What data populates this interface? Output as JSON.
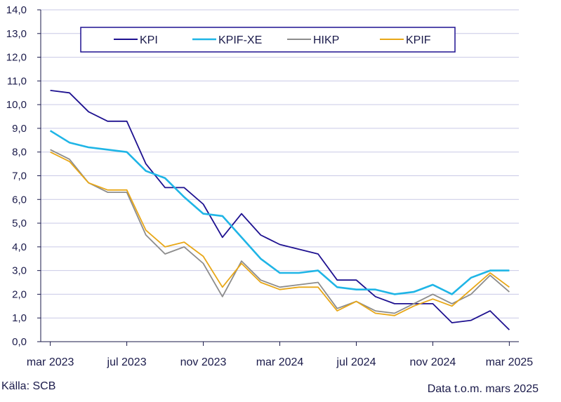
{
  "chart_data": {
    "type": "line",
    "x": [
      "mar 2023",
      "apr 2023",
      "maj 2023",
      "jun 2023",
      "jul 2023",
      "aug 2023",
      "sep 2023",
      "okt 2023",
      "nov 2023",
      "dec 2023",
      "jan 2024",
      "feb 2024",
      "mar 2024",
      "apr 2024",
      "maj 2024",
      "jun 2024",
      "jul 2024",
      "aug 2024",
      "sep 2024",
      "okt 2024",
      "nov 2024",
      "dec 2024",
      "jan 2025",
      "feb 2025",
      "mar 2025"
    ],
    "x_tick_labels": [
      "mar 2023",
      "jul 2023",
      "nov 2023",
      "mar 2024",
      "jul 2024",
      "nov 2024",
      "mar 2025"
    ],
    "x_tick_indices": [
      0,
      4,
      8,
      12,
      16,
      20,
      24
    ],
    "y_ticks": [
      "0,0",
      "1,0",
      "2,0",
      "3,0",
      "4,0",
      "5,0",
      "6,0",
      "7,0",
      "8,0",
      "9,0",
      "10,0",
      "11,0",
      "12,0",
      "13,0",
      "14,0"
    ],
    "ylim": [
      0,
      14
    ],
    "grid": true,
    "legend_position": "top",
    "series": [
      {
        "name": "KPI",
        "color": "#1e1190",
        "values": [
          10.6,
          10.5,
          9.7,
          9.3,
          9.3,
          7.5,
          6.5,
          6.5,
          5.8,
          4.4,
          5.4,
          4.5,
          4.1,
          3.9,
          3.7,
          2.6,
          2.6,
          1.9,
          1.6,
          1.6,
          1.6,
          0.8,
          0.9,
          1.3,
          0.5
        ]
      },
      {
        "name": "KPIF-XE",
        "color": "#1fb5e6",
        "values": [
          8.9,
          8.4,
          8.2,
          8.1,
          8.0,
          7.2,
          6.9,
          6.1,
          5.4,
          5.3,
          4.4,
          3.5,
          2.9,
          2.9,
          3.0,
          2.3,
          2.2,
          2.2,
          2.0,
          2.1,
          2.4,
          2.0,
          2.7,
          3.0,
          3.0
        ]
      },
      {
        "name": "HIKP",
        "color": "#8c8c8c",
        "values": [
          8.1,
          7.7,
          6.7,
          6.3,
          6.3,
          4.5,
          3.7,
          4.0,
          3.3,
          1.9,
          3.4,
          2.6,
          2.3,
          2.4,
          2.5,
          1.4,
          1.7,
          1.3,
          1.2,
          1.6,
          2.0,
          1.6,
          2.0,
          2.8,
          2.1
        ]
      },
      {
        "name": "KPIF",
        "color": "#e8a717",
        "values": [
          8.0,
          7.6,
          6.7,
          6.4,
          6.4,
          4.7,
          4.0,
          4.2,
          3.6,
          2.3,
          3.3,
          2.5,
          2.2,
          2.3,
          2.3,
          1.3,
          1.7,
          1.2,
          1.1,
          1.5,
          1.8,
          1.5,
          2.2,
          2.9,
          2.3
        ]
      }
    ]
  },
  "footer": {
    "source": "Källa: SCB",
    "data_note": "Data t.o.m. mars 2025"
  }
}
